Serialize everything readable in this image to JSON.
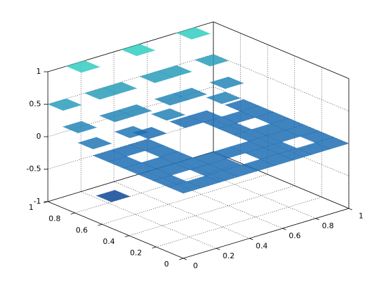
{
  "chart_data": {
    "type": "scatter3",
    "x": [
      0.056,
      0.167,
      0.278,
      0.389,
      0.5,
      0.611,
      0.722,
      0.833,
      0.944,
      0.056,
      0.278,
      0.389,
      0.611,
      0.722,
      0.944,
      0.056,
      0.167,
      0.278,
      0.389,
      0.5,
      0.611,
      0.722,
      0.833,
      0.944,
      0.056,
      0.167,
      0.278,
      0.722,
      0.833,
      0.944,
      0.056,
      0.278,
      0.722,
      0.944,
      0.056,
      0.167,
      0.278,
      0.722,
      0.833,
      0.944,
      0.056,
      0.167,
      0.278,
      0.389,
      0.5,
      0.611,
      0.722,
      0.833,
      0.944,
      0.056,
      0.278,
      0.389,
      0.611,
      0.722,
      0.944,
      0.056,
      0.167,
      0.278,
      0.389,
      0.5,
      0.611,
      0.722,
      0.833,
      0.944
    ],
    "y": [
      0.056,
      0.056,
      0.056,
      0.056,
      0.056,
      0.056,
      0.056,
      0.056,
      0.056,
      0.167,
      0.167,
      0.167,
      0.167,
      0.167,
      0.167,
      0.278,
      0.278,
      0.278,
      0.278,
      0.278,
      0.278,
      0.278,
      0.278,
      0.278,
      0.389,
      0.389,
      0.389,
      0.389,
      0.389,
      0.389,
      0.5,
      0.5,
      0.5,
      0.5,
      0.611,
      0.611,
      0.611,
      0.611,
      0.611,
      0.611,
      0.722,
      0.722,
      0.722,
      0.722,
      0.722,
      0.722,
      0.722,
      0.722,
      0.722,
      0.833,
      0.833,
      0.833,
      0.833,
      0.833,
      0.833,
      0.944,
      0.944,
      0.944,
      0.944,
      0.944,
      0.944,
      0.944,
      0.944,
      0.944
    ],
    "z": [
      0,
      0,
      0,
      0,
      0,
      0,
      0,
      0,
      0,
      0,
      0,
      0,
      0,
      0,
      0,
      0,
      0,
      0,
      0,
      0,
      0,
      0,
      0,
      0,
      0,
      0,
      0,
      0,
      0,
      0,
      0,
      0,
      0,
      0,
      0,
      0,
      0,
      0,
      0,
      0,
      0.1,
      -0.8,
      0.1,
      0,
      0.2,
      0,
      0,
      0.2,
      0,
      0.25,
      0.25,
      0.25,
      0.25,
      0.25,
      0.25,
      0.5,
      1,
      0.5,
      0.5,
      1,
      0.5,
      0.5,
      1,
      0.5
    ],
    "xlim": [
      0,
      1
    ],
    "ylim": [
      0,
      1
    ],
    "zlim": [
      -1,
      1
    ],
    "xticks": [
      0,
      0.2,
      0.4,
      0.6,
      0.8,
      1
    ],
    "yticks": [
      0,
      0.2,
      0.4,
      0.6,
      0.8,
      1
    ],
    "zticks": [
      -1,
      -0.5,
      0,
      0.5,
      1
    ],
    "grid": true,
    "colormap": [
      "#0a3d8f",
      "#1f6fb4",
      "#33ccc0"
    ]
  }
}
